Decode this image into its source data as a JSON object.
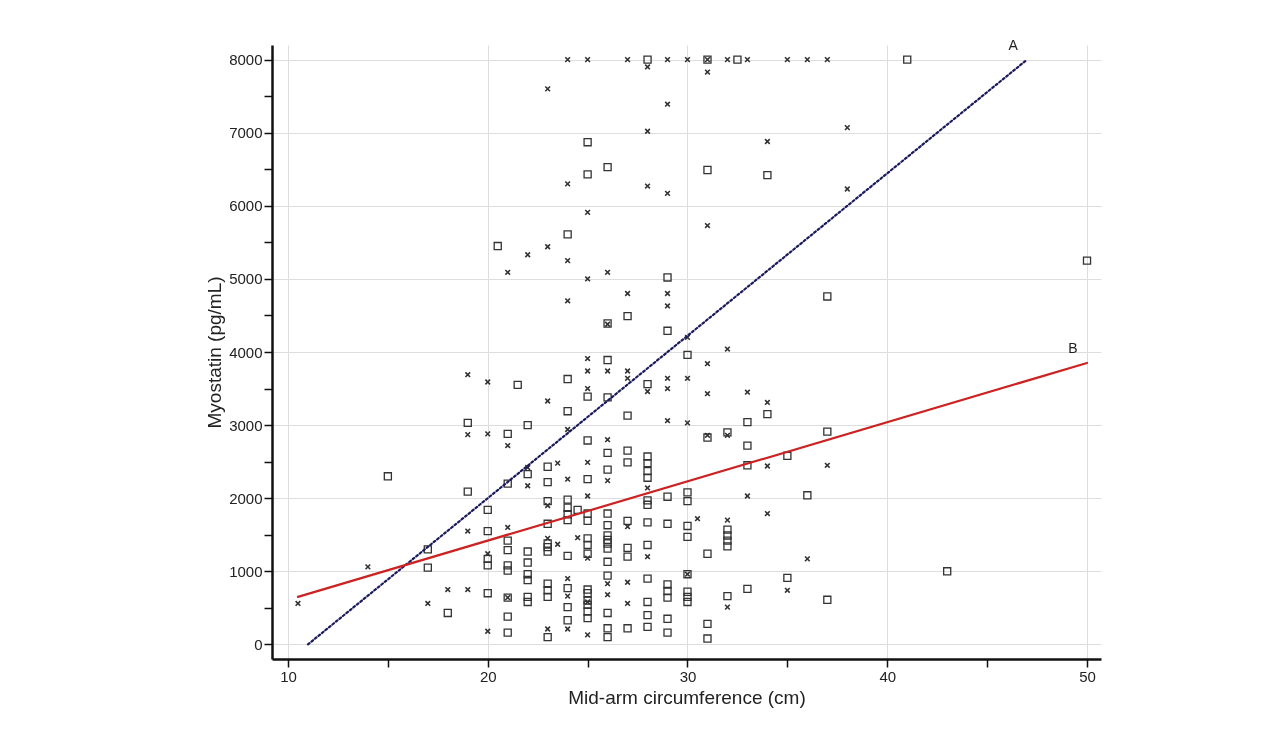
{
  "chart_data": {
    "type": "scatter",
    "xlabel": "Mid-arm circumference (cm)",
    "ylabel": "Myostatin (pg/mL)",
    "xlim": [
      9.2,
      50.7
    ],
    "ylim": [
      -200,
      8200
    ],
    "xticks": [
      10,
      {
        "value": 15,
        "label": null
      },
      20,
      {
        "value": 25,
        "label": null
      },
      30,
      {
        "value": 35,
        "label": null
      },
      40,
      {
        "value": 45,
        "label": null
      },
      50
    ],
    "yticks": [
      0,
      {
        "value": 500,
        "label": null
      },
      1000,
      {
        "value": 1500,
        "label": null
      },
      2000,
      {
        "value": 2500,
        "label": null
      },
      3000,
      {
        "value": 3500,
        "label": null
      },
      4000,
      {
        "value": 4500,
        "label": null
      },
      5000,
      {
        "value": 5500,
        "label": null
      },
      6000,
      {
        "value": 6500,
        "label": null
      },
      7000,
      {
        "value": 7500,
        "label": null
      },
      8000
    ],
    "grid": true,
    "series": [
      {
        "marker": "square",
        "color": "#333333",
        "x": [
          15,
          17,
          17,
          18,
          19,
          19,
          20,
          20,
          20,
          20,
          20,
          20.5,
          21,
          21,
          21,
          21,
          21,
          21,
          21,
          21,
          21,
          21.5,
          22,
          22,
          22,
          22,
          22,
          22,
          22,
          22,
          23,
          23,
          23,
          23,
          23,
          23,
          23,
          23,
          23,
          23,
          23,
          24,
          24,
          24,
          24,
          24,
          24,
          24,
          24,
          24,
          24,
          24,
          24.5,
          25,
          25,
          25,
          25,
          25,
          25,
          25,
          25,
          25,
          25,
          25,
          25,
          25,
          25,
          25,
          25,
          26,
          26,
          26,
          26,
          26,
          26,
          26,
          26,
          26,
          26,
          26,
          26,
          26,
          26,
          26,
          26,
          26,
          27,
          27,
          27,
          27,
          27,
          27,
          27,
          27,
          28,
          28,
          28,
          28,
          28,
          28,
          28,
          28,
          28,
          28,
          28,
          28,
          28,
          28,
          29,
          29,
          29,
          29,
          29,
          29,
          29,
          29,
          29,
          30,
          30,
          30,
          30,
          30,
          30,
          30,
          30,
          30,
          31,
          31,
          31,
          31,
          31,
          31,
          32,
          32,
          32,
          32,
          32,
          32,
          32.5,
          33,
          33,
          33,
          33,
          34,
          34,
          35,
          35,
          36,
          37,
          37,
          37,
          41,
          43,
          50
        ],
        "values": [
          2300,
          1300,
          1050,
          430,
          3030,
          2090,
          1840,
          1550,
          1170,
          1080,
          700,
          5450,
          2880,
          2200,
          1420,
          1290,
          1080,
          1010,
          640,
          380,
          160,
          3550,
          3000,
          2330,
          1270,
          1120,
          960,
          880,
          650,
          580,
          2430,
          2220,
          1960,
          1650,
          1380,
          1330,
          1270,
          830,
          740,
          650,
          100,
          5610,
          3630,
          3190,
          1980,
          1870,
          1780,
          1700,
          1210,
          770,
          510,
          330,
          1840,
          6870,
          6430,
          3390,
          2790,
          2260,
          1790,
          1690,
          1450,
          1360,
          1240,
          750,
          700,
          600,
          540,
          450,
          360,
          6530,
          4390,
          3890,
          3380,
          2620,
          2390,
          1790,
          1630,
          1490,
          1430,
          1380,
          1310,
          1130,
          940,
          430,
          220,
          100,
          4490,
          3130,
          2650,
          2490,
          1690,
          1320,
          1200,
          220,
          8000,
          3560,
          2570,
          2480,
          2370,
          2280,
          1970,
          1910,
          1670,
          1360,
          900,
          580,
          400,
          240,
          5020,
          4290,
          2020,
          1650,
          820,
          730,
          640,
          350,
          160,
          3960,
          2080,
          1960,
          1620,
          1470,
          960,
          720,
          650,
          580,
          8000,
          6490,
          2830,
          1240,
          280,
          80,
          2900,
          1570,
          1490,
          1420,
          1340,
          660,
          8000,
          3040,
          2720,
          2450,
          760,
          6420,
          3150,
          2580,
          910,
          2040,
          4760,
          2910,
          610,
          8000,
          1000,
          5250
        ]
      },
      {
        "marker": "cross",
        "color": "#333333",
        "x": [
          10.5,
          14,
          17,
          18,
          19,
          19,
          19,
          19,
          20,
          20,
          20,
          20,
          21,
          21,
          21,
          21,
          22,
          22,
          22,
          23,
          23,
          23,
          23,
          23,
          23,
          23.5,
          23.5,
          24,
          24,
          24,
          24,
          24,
          24,
          24,
          24,
          24,
          24.5,
          25,
          25,
          25,
          25,
          25,
          25,
          25,
          25,
          25,
          25,
          25,
          26,
          26,
          26,
          26,
          26,
          26,
          26,
          27,
          27,
          27,
          27,
          27,
          27,
          27,
          28,
          28,
          28,
          28,
          28,
          28,
          29,
          29,
          29,
          29,
          29,
          29,
          29,
          29,
          30,
          30,
          30,
          30,
          30,
          30.5,
          31,
          31,
          31,
          31,
          31,
          31,
          32,
          32,
          32,
          32,
          32,
          33,
          33,
          33,
          34,
          34,
          34,
          34,
          35,
          35,
          36,
          36,
          37,
          37,
          38,
          38
        ],
        "values": [
          560,
          1060,
          560,
          750,
          3690,
          2870,
          1550,
          750,
          3590,
          2880,
          1240,
          180,
          5090,
          2720,
          1600,
          640,
          5330,
          2420,
          2170,
          7600,
          5440,
          3330,
          1900,
          1450,
          210,
          2480,
          1370,
          8000,
          6300,
          5250,
          4700,
          2940,
          2260,
          900,
          660,
          210,
          1460,
          8000,
          5910,
          5000,
          3910,
          3740,
          3500,
          2490,
          2030,
          1180,
          580,
          130,
          5090,
          4380,
          3740,
          2800,
          2240,
          830,
          680,
          8000,
          4800,
          3740,
          3640,
          1610,
          850,
          560,
          7900,
          7020,
          6270,
          3460,
          2140,
          1200,
          8000,
          7390,
          6170,
          4800,
          4630,
          3640,
          3500,
          3060,
          8000,
          4200,
          3640,
          3030,
          960,
          1720,
          8000,
          7830,
          5730,
          3840,
          3430,
          2860,
          8000,
          4040,
          2860,
          1700,
          510,
          8000,
          3450,
          2030,
          6880,
          3310,
          2440,
          1790,
          8000,
          740,
          8000,
          1170,
          8000,
          2450,
          7070,
          6230
        ]
      },
      {
        "type": "line",
        "name": "A",
        "color": "#1a1a5e",
        "line_style": "dotted",
        "x": [
          11,
          47
        ],
        "values": [
          0,
          8000
        ]
      },
      {
        "type": "line",
        "name": "B",
        "color": "#cc2222",
        "line_style": "solid",
        "x": [
          10.5,
          50
        ],
        "values": [
          650,
          3850
        ]
      }
    ]
  }
}
